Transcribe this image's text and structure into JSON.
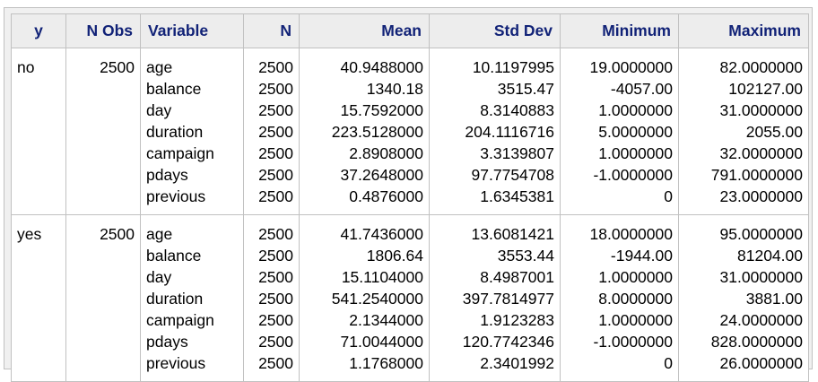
{
  "columns": [
    "y",
    "N Obs",
    "Variable",
    "N",
    "Mean",
    "Std Dev",
    "Minimum",
    "Maximum"
  ],
  "groups": [
    {
      "y": "no",
      "nobs": "2500",
      "variables": [
        "age",
        "balance",
        "day",
        "duration",
        "campaign",
        "pdays",
        "previous"
      ],
      "n": [
        "2500",
        "2500",
        "2500",
        "2500",
        "2500",
        "2500",
        "2500"
      ],
      "mean": [
        "40.9488000",
        "1340.18",
        "15.7592000",
        "223.5128000",
        "2.8908000",
        "37.2648000",
        "0.4876000"
      ],
      "std": [
        "10.1197995",
        "3515.47",
        "8.3140883",
        "204.1116716",
        "3.3139807",
        "97.7754708",
        "1.6345381"
      ],
      "min": [
        "19.0000000",
        "-4057.00",
        "1.0000000",
        "5.0000000",
        "1.0000000",
        "-1.0000000",
        "0"
      ],
      "max": [
        "82.0000000",
        "102127.00",
        "31.0000000",
        "2055.00",
        "32.0000000",
        "791.0000000",
        "23.0000000"
      ]
    },
    {
      "y": "yes",
      "nobs": "2500",
      "variables": [
        "age",
        "balance",
        "day",
        "duration",
        "campaign",
        "pdays",
        "previous"
      ],
      "n": [
        "2500",
        "2500",
        "2500",
        "2500",
        "2500",
        "2500",
        "2500"
      ],
      "mean": [
        "41.7436000",
        "1806.64",
        "15.1104000",
        "541.2540000",
        "2.1344000",
        "71.0044000",
        "1.1768000"
      ],
      "std": [
        "13.6081421",
        "3553.44",
        "8.4987001",
        "397.7814977",
        "1.9123283",
        "120.7742346",
        "2.3401992"
      ],
      "min": [
        "18.0000000",
        "-1944.00",
        "1.0000000",
        "8.0000000",
        "1.0000000",
        "-1.0000000",
        "0"
      ],
      "max": [
        "95.0000000",
        "81204.00",
        "31.0000000",
        "3881.00",
        "24.0000000",
        "828.0000000",
        "26.0000000"
      ]
    }
  ],
  "colors": {
    "header_text": "#112277",
    "header_bg": "#ededed",
    "border": "#c1c1c1",
    "frame_bg": "#f0f0f0"
  }
}
